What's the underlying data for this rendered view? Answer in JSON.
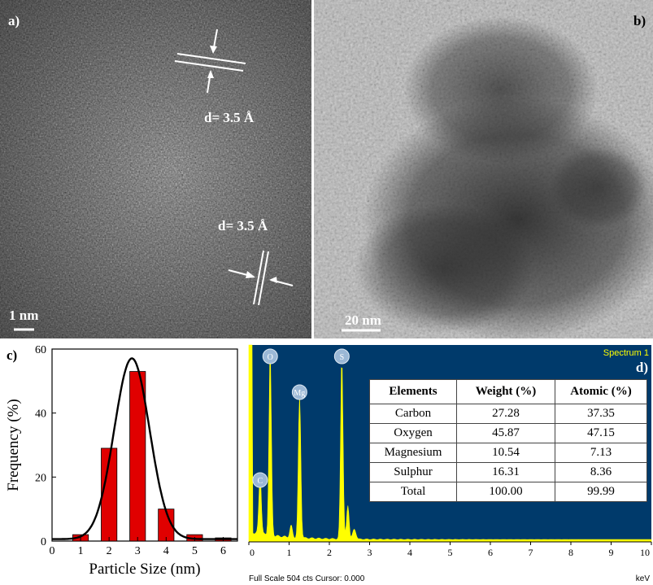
{
  "panels": {
    "a": {
      "label": "a)",
      "scale_bar": "1 nm",
      "annotations": [
        "d= 3.5 Å",
        "d= 3.5 Å"
      ]
    },
    "b": {
      "label": "b)",
      "scale_bar": "20 nm"
    },
    "c": {
      "label": "c)"
    },
    "d": {
      "label": "d)",
      "spectrum_label": "Spectrum 1",
      "footer_left": "Full Scale 504 cts Cursor: 0.000",
      "footer_right": "keV",
      "peak_labels": [
        "O",
        "Mg",
        "S",
        "C"
      ],
      "table": {
        "headers": [
          "Elements",
          "Weight (%)",
          "Atomic (%)"
        ],
        "rows": [
          [
            "Carbon",
            "27.28",
            "37.35"
          ],
          [
            "Oxygen",
            "45.87",
            "47.15"
          ],
          [
            "Magnesium",
            "10.54",
            "7.13"
          ],
          [
            "Sulphur",
            "16.31",
            "8.36"
          ],
          [
            "Total",
            "100.00",
            "99.99"
          ]
        ]
      }
    }
  },
  "chart_data": [
    {
      "type": "bar",
      "panel": "c",
      "xlabel": "Particle Size (nm)",
      "ylabel": "Frequency (%)",
      "xlim": [
        0,
        6.5
      ],
      "ylim": [
        0,
        60
      ],
      "xticks": [
        "0",
        "1",
        "2",
        "3",
        "4",
        "5",
        "6"
      ],
      "yticks": [
        "0",
        "20",
        "40",
        "60"
      ],
      "x": [
        1,
        2,
        3,
        4,
        5,
        6
      ],
      "values": [
        2,
        29,
        53,
        10,
        2,
        1
      ],
      "bar_color": "#e00000",
      "fit_curve": {
        "type": "gaussian",
        "center": 2.8,
        "peak": 56.5,
        "sigma": 0.62,
        "color": "#000000"
      }
    },
    {
      "type": "area",
      "panel": "d",
      "xlabel": "keV",
      "xlim": [
        0,
        10
      ],
      "xticks": [
        "0",
        "1",
        "2",
        "3",
        "4",
        "5",
        "6",
        "7",
        "8",
        "9",
        "10"
      ],
      "background_color": "#003a6b",
      "fill_color": "#ffff00",
      "peaks": [
        {
          "label": "C",
          "x": 0.28,
          "height": 0.3
        },
        {
          "label": "O",
          "x": 0.53,
          "height": 0.92
        },
        {
          "label": "Mg",
          "x": 1.26,
          "height": 0.72
        },
        {
          "label": "S",
          "x": 2.31,
          "height": 0.92
        },
        {
          "label": "S",
          "x": 2.46,
          "height": 0.17
        }
      ]
    }
  ]
}
